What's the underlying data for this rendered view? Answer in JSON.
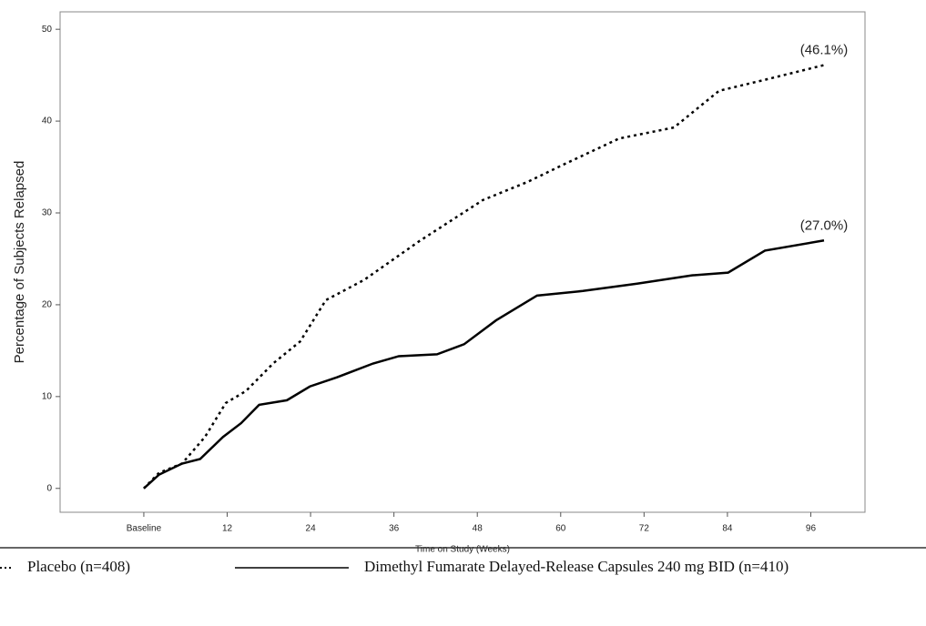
{
  "chart_data": {
    "type": "line",
    "ylabel": "Percentage of Subjects Relapsed",
    "xlabel": "Time on Study (Weeks)",
    "xlim": [
      -12.05,
      103.8
    ],
    "ylim": [
      -2.6,
      51.9
    ],
    "xticks": [
      {
        "value": 0,
        "label": "Baseline"
      },
      12,
      24,
      36,
      48,
      60,
      72,
      84,
      96
    ],
    "yticks": [
      0,
      10,
      20,
      30,
      40,
      50
    ],
    "series": [
      {
        "name": "Placebo (n=408)",
        "color": "#000000",
        "style": "dotted",
        "x": [
          0,
          2.2,
          5.5,
          8.8,
          11.8,
          14.7,
          18.6,
          22.5,
          26.2,
          31.7,
          39.6,
          48.8,
          55.3,
          60.5,
          68.4,
          76.3,
          82.8,
          89.4,
          97.9
        ],
        "values": [
          0,
          1.7,
          2.7,
          5.6,
          9.3,
          10.6,
          13.6,
          16,
          20.5,
          22.7,
          26.9,
          31.4,
          33.4,
          35.3,
          38.1,
          39.3,
          43.3,
          44.5,
          46.1
        ]
      },
      {
        "name": "Dimethyl Fumarate Delayed-Release Capsules 240 mg BID (n=410)",
        "color": "#000000",
        "style": "solid",
        "x": [
          0,
          2.2,
          5.5,
          8.1,
          11.4,
          14,
          16.6,
          20.6,
          23.9,
          27.8,
          33,
          36.7,
          42.2,
          46.1,
          50.7,
          56.6,
          63.2,
          71,
          78.9,
          84.1,
          89.4,
          97.9
        ],
        "values": [
          0,
          1.5,
          2.7,
          3.2,
          5.6,
          7.1,
          9.1,
          9.6,
          11.1,
          12.1,
          13.6,
          14.4,
          14.6,
          15.7,
          18.3,
          21,
          21.5,
          22.3,
          23.2,
          23.5,
          25.9,
          27
        ]
      }
    ],
    "annotations": [
      "(46.1%)",
      "(27.0%)"
    ]
  }
}
